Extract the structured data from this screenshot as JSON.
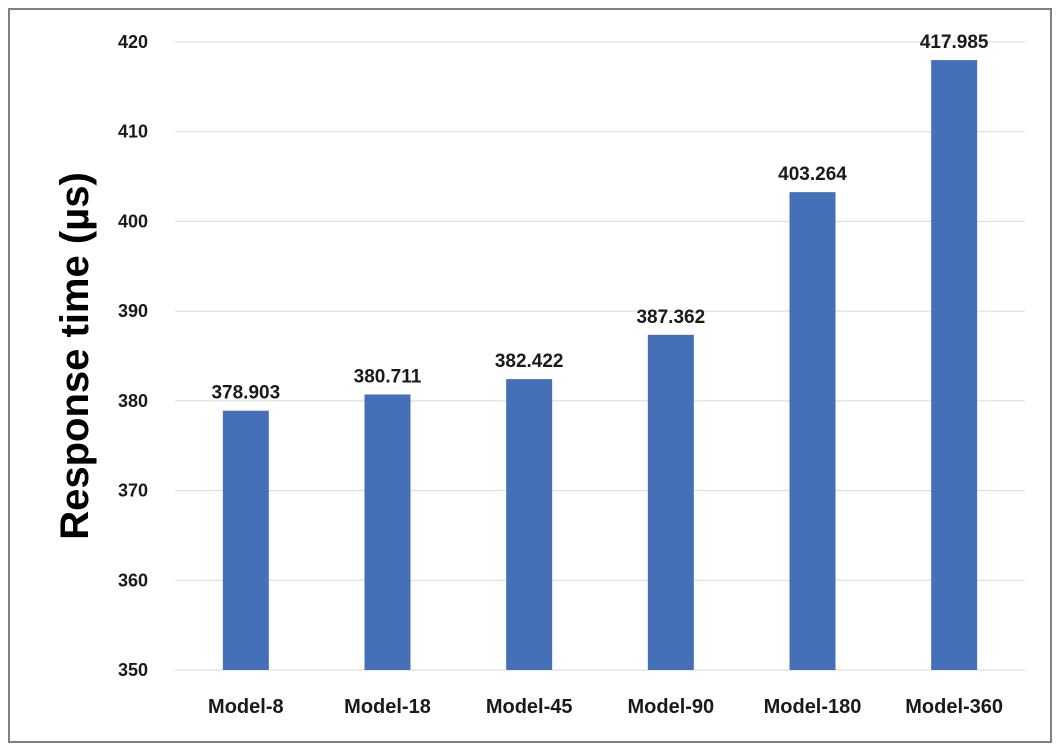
{
  "chart_data": {
    "type": "bar",
    "title": "",
    "xlabel": "",
    "ylabel": "Response time (µs)",
    "categories": [
      "Model-8",
      "Model-18",
      "Model-45",
      "Model-90",
      "Model-180",
      "Model-360"
    ],
    "values": [
      378.903,
      380.711,
      382.422,
      387.362,
      403.264,
      417.985
    ],
    "data_labels": [
      "378.903",
      "380.711",
      "382.422",
      "387.362",
      "403.264",
      "417.985"
    ],
    "ylim": [
      350,
      420
    ],
    "yticks": [
      350,
      360,
      370,
      380,
      390,
      400,
      410,
      420
    ],
    "grid": true,
    "legend": "none",
    "colors": {
      "bar": "#4570b8"
    }
  }
}
